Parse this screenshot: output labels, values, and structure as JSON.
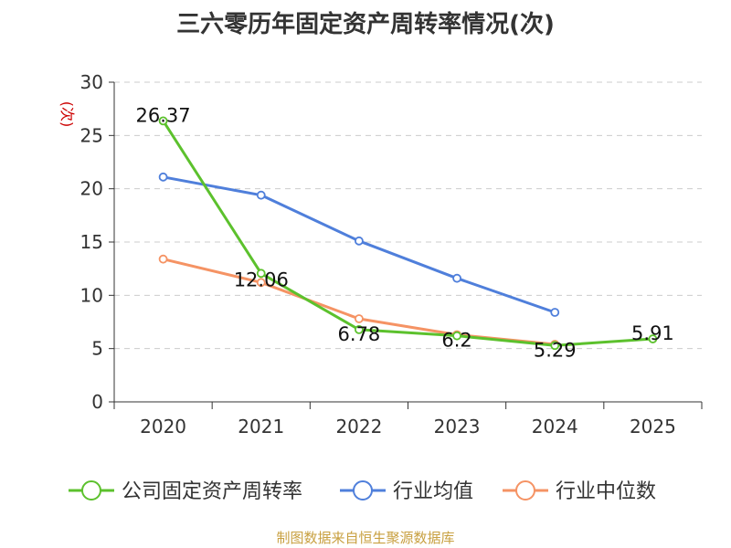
{
  "page_title": "三六零历年固定资产周转率情况(次)",
  "source_text": "制图数据来自恒生聚源数据库",
  "colors": {
    "company": "#5cc12d",
    "industry_avg": "#4f7fdb",
    "industry_median": "#f59364",
    "axis": "#333333",
    "grid": "#cccccc",
    "unit_label": "#cc0000",
    "title": "#333333",
    "source": "#c8a040"
  },
  "chart_data": {
    "type": "line",
    "title": "三六零历年固定资产周转率情况(次)",
    "ylabel": "(次)",
    "xlabel": "",
    "ylim": [
      0,
      30
    ],
    "yticks": [
      0,
      5,
      10,
      15,
      20,
      25,
      30
    ],
    "grid": true,
    "legend_position": "bottom",
    "categories": [
      "2020",
      "2021",
      "2022",
      "2023",
      "2024",
      "2025"
    ],
    "series": [
      {
        "name": "公司固定资产周转率",
        "color_key": "company",
        "values": [
          26.37,
          12.06,
          6.78,
          6.2,
          5.29,
          5.91
        ],
        "labels": [
          "26.37",
          "12.06",
          "6.78",
          "6.2",
          "5.29",
          "5.91"
        ]
      },
      {
        "name": "行业均值",
        "color_key": "industry_avg",
        "values": [
          21.1,
          19.4,
          15.1,
          11.6,
          8.4,
          null
        ]
      },
      {
        "name": "行业中位数",
        "color_key": "industry_median",
        "values": [
          13.4,
          11.2,
          7.8,
          6.3,
          5.4,
          null
        ]
      }
    ]
  }
}
